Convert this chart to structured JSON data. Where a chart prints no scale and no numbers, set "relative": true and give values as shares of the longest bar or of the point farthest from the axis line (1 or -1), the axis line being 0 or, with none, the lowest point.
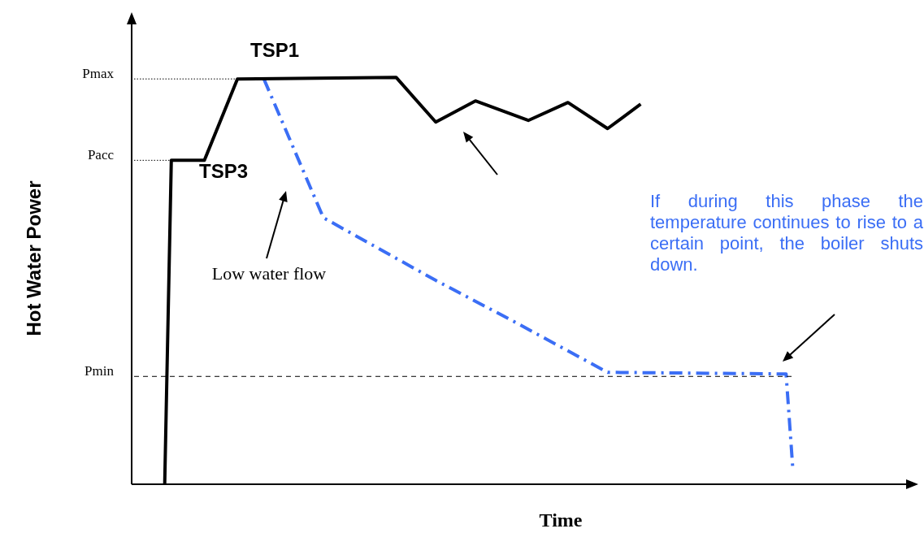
{
  "chart_data": {
    "type": "line",
    "relative": true,
    "xlabel": "Time",
    "ylabel": "Hot Water Power",
    "legend": false,
    "marker": "none",
    "categories": [
      null,
      null,
      null,
      null,
      null,
      null,
      null,
      null,
      null,
      null,
      null,
      null,
      null,
      null,
      null,
      null,
      null,
      null,
      null,
      null,
      null,
      null,
      null,
      null,
      null,
      null,
      null,
      null,
      null,
      null,
      null,
      null,
      null,
      null,
      null,
      null,
      null,
      null,
      null,
      null,
      null,
      null,
      null,
      null,
      null,
      null,
      null,
      null,
      null,
      null,
      null,
      null,
      null,
      null,
      null,
      null,
      null,
      null,
      null,
      null,
      null,
      null,
      null,
      null,
      null,
      null,
      null,
      null,
      null,
      null,
      null,
      null,
      null,
      null,
      null,
      null,
      null,
      null,
      null,
      null,
      null,
      null,
      null,
      null,
      null,
      null,
      null,
      null,
      null,
      null,
      null,
      null,
      null,
      null,
      null,
      null,
      null,
      null,
      null,
      null,
      null,
      null,
      null,
      null,
      null,
      null,
      null,
      null,
      null,
      null,
      null,
      null,
      null,
      null,
      null,
      null,
      null,
      null,
      null,
      null
    ],
    "series": [
      {
        "color": "#000000",
        "line_style": "solid",
        "values": [
          null,
          null,
          null,
          null,
          null,
          0,
          0.796,
          null,
          null,
          null,
          null,
          0.796,
          null,
          null,
          null,
          null,
          0.996,
          null,
          null,
          null,
          null,
          null,
          null,
          null,
          null,
          null,
          null,
          null,
          null,
          null,
          null,
          null,
          null,
          null,
          null,
          null,
          null,
          null,
          null,
          null,
          1.0,
          null,
          null,
          null,
          null,
          null,
          0.89,
          null,
          null,
          null,
          null,
          null,
          0.942,
          null,
          null,
          null,
          null,
          null,
          null,
          null,
          0.894,
          null,
          null,
          null,
          null,
          null,
          0.938,
          null,
          null,
          null,
          null,
          null,
          0.874,
          null,
          null,
          null,
          null,
          0.934,
          null,
          null,
          null,
          null,
          null,
          null,
          null,
          null,
          null,
          null,
          null,
          null,
          null,
          null,
          null,
          null,
          null,
          null,
          null,
          null,
          null,
          null,
          null,
          null,
          null,
          null,
          null,
          null,
          null,
          null,
          null,
          null,
          null,
          null,
          null,
          null,
          null,
          null,
          null,
          null,
          null,
          null
        ]
      },
      {
        "color": "#3b6ef5",
        "line_style": "dashed",
        "values": [
          null,
          null,
          null,
          null,
          null,
          null,
          null,
          null,
          null,
          null,
          null,
          null,
          null,
          null,
          null,
          null,
          null,
          null,
          null,
          null,
          0.996,
          null,
          null,
          null,
          null,
          null,
          null,
          null,
          null,
          0.655,
          null,
          null,
          null,
          null,
          null,
          null,
          null,
          null,
          null,
          null,
          null,
          null,
          null,
          null,
          null,
          null,
          0.501,
          null,
          null,
          null,
          null,
          null,
          null,
          null,
          null,
          null,
          null,
          0.407,
          null,
          null,
          null,
          null,
          null,
          null,
          null,
          null,
          null,
          null,
          null,
          null,
          null,
          null,
          0.275,
          null,
          null,
          null,
          null,
          null,
          null,
          null,
          null,
          null,
          null,
          null,
          null,
          null,
          null,
          null,
          null,
          null,
          null,
          null,
          null,
          null,
          null,
          null,
          null,
          null,
          null,
          0.271,
          0.042,
          null,
          null,
          null,
          null,
          null,
          null,
          null,
          null,
          null,
          null,
          null,
          null,
          null,
          null,
          null,
          null,
          null,
          null,
          null
        ]
      }
    ],
    "ref_lines": [
      {
        "axis": "y",
        "value": 0.996,
        "label": "Pmax",
        "line_style": "dotted",
        "color": "#000000"
      },
      {
        "axis": "y",
        "value": 0.796,
        "label": "Pacc",
        "line_style": "dotted",
        "color": "#000000"
      },
      {
        "axis": "y",
        "value": 0.265,
        "label": "Pmin",
        "line_style": "dashed",
        "color": "#000000"
      }
    ],
    "annotations": [
      "TSP1",
      "TSP3",
      "Low water flow",
      "If during this phase the temperature continues to rise to a certain point, the boiler shuts down."
    ]
  }
}
